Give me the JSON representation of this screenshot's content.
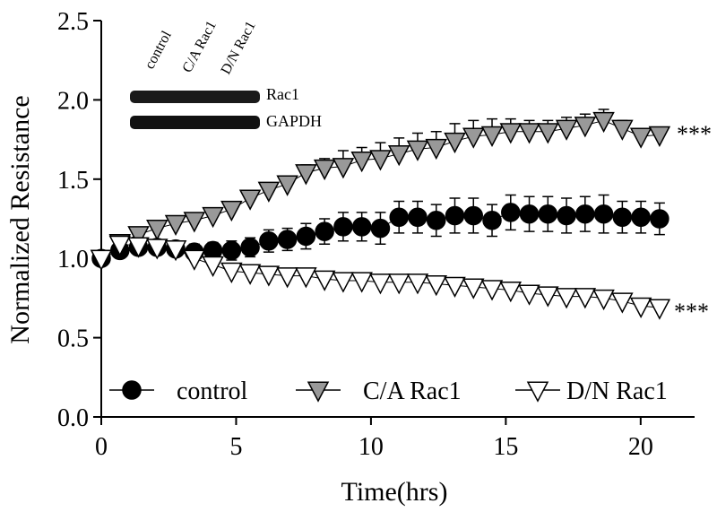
{
  "chart_data": {
    "type": "line",
    "x_label": "Time(hrs)",
    "y_label": "Normalized Resistance",
    "x": [
      0,
      0.69,
      1.38,
      2.07,
      2.76,
      3.45,
      4.14,
      4.83,
      5.52,
      6.21,
      6.9,
      7.59,
      8.28,
      8.97,
      9.66,
      10.35,
      11.04,
      11.73,
      12.42,
      13.11,
      13.8,
      14.49,
      15.18,
      15.87,
      16.56,
      17.25,
      17.94,
      18.63,
      19.32,
      20.01,
      20.7
    ],
    "series": [
      {
        "name": "control",
        "color": "#000000",
        "marker": "circle",
        "values": [
          1.0,
          1.05,
          1.07,
          1.07,
          1.06,
          1.04,
          1.05,
          1.05,
          1.07,
          1.11,
          1.12,
          1.14,
          1.17,
          1.2,
          1.2,
          1.19,
          1.26,
          1.26,
          1.24,
          1.27,
          1.27,
          1.24,
          1.29,
          1.28,
          1.28,
          1.27,
          1.28,
          1.28,
          1.26,
          1.26,
          1.25
        ],
        "errors": [
          0.02,
          0.03,
          0.03,
          0.03,
          0.04,
          0.05,
          0.05,
          0.06,
          0.06,
          0.07,
          0.07,
          0.08,
          0.08,
          0.09,
          0.09,
          0.1,
          0.1,
          0.1,
          0.1,
          0.11,
          0.11,
          0.1,
          0.11,
          0.11,
          0.11,
          0.11,
          0.11,
          0.12,
          0.1,
          0.1,
          0.1
        ]
      },
      {
        "name": "C/A Rac1",
        "color": "#999999",
        "marker": "triangle-down",
        "values": [
          1.0,
          1.1,
          1.15,
          1.19,
          1.22,
          1.24,
          1.27,
          1.31,
          1.38,
          1.43,
          1.47,
          1.54,
          1.57,
          1.58,
          1.62,
          1.63,
          1.66,
          1.69,
          1.7,
          1.74,
          1.77,
          1.78,
          1.8,
          1.8,
          1.8,
          1.82,
          1.84,
          1.87,
          1.82,
          1.77,
          1.78
        ],
        "errors": [
          0.02,
          0.02,
          0.02,
          0.02,
          0.02,
          0.02,
          0.02,
          0.03,
          0.03,
          0.03,
          0.04,
          0.05,
          0.06,
          0.1,
          0.08,
          0.1,
          0.1,
          0.1,
          0.1,
          0.11,
          0.1,
          0.1,
          0.08,
          0.07,
          0.07,
          0.07,
          0.07,
          0.07,
          0.05,
          0.04,
          0.04
        ]
      },
      {
        "name": "D/N Rac1",
        "color": "#ffffff",
        "marker": "triangle-down",
        "values": [
          1.0,
          1.09,
          1.08,
          1.07,
          1.06,
          1.0,
          0.96,
          0.92,
          0.91,
          0.9,
          0.89,
          0.89,
          0.87,
          0.86,
          0.86,
          0.85,
          0.85,
          0.85,
          0.84,
          0.83,
          0.82,
          0.81,
          0.8,
          0.78,
          0.77,
          0.76,
          0.76,
          0.75,
          0.73,
          0.7,
          0.69
        ],
        "errors": [
          0.02,
          0.02,
          0.02,
          0.02,
          0.02,
          0.02,
          0.02,
          0.03,
          0.03,
          0.03,
          0.03,
          0.03,
          0.03,
          0.03,
          0.03,
          0.03,
          0.03,
          0.03,
          0.03,
          0.03,
          0.03,
          0.03,
          0.03,
          0.03,
          0.03,
          0.03,
          0.03,
          0.03,
          0.03,
          0.03,
          0.03
        ]
      }
    ],
    "xlim": [
      0,
      22
    ],
    "xticks": [
      0,
      5,
      10,
      15,
      20
    ],
    "ylim": [
      0,
      2.5
    ],
    "yticks": [
      {
        "value": 0,
        "label": "0.0"
      },
      0.5,
      {
        "value": 1,
        "label": "1.0"
      },
      1.5,
      {
        "value": 2,
        "label": "2.0"
      },
      2.5
    ],
    "legend": "lower left",
    "annotations": [
      "***",
      "***"
    ],
    "inset": {
      "lanes": [
        "control",
        "C/A Rac1",
        "D/N Rac1"
      ],
      "bands": [
        "Rac1",
        "GAPDH"
      ]
    }
  }
}
